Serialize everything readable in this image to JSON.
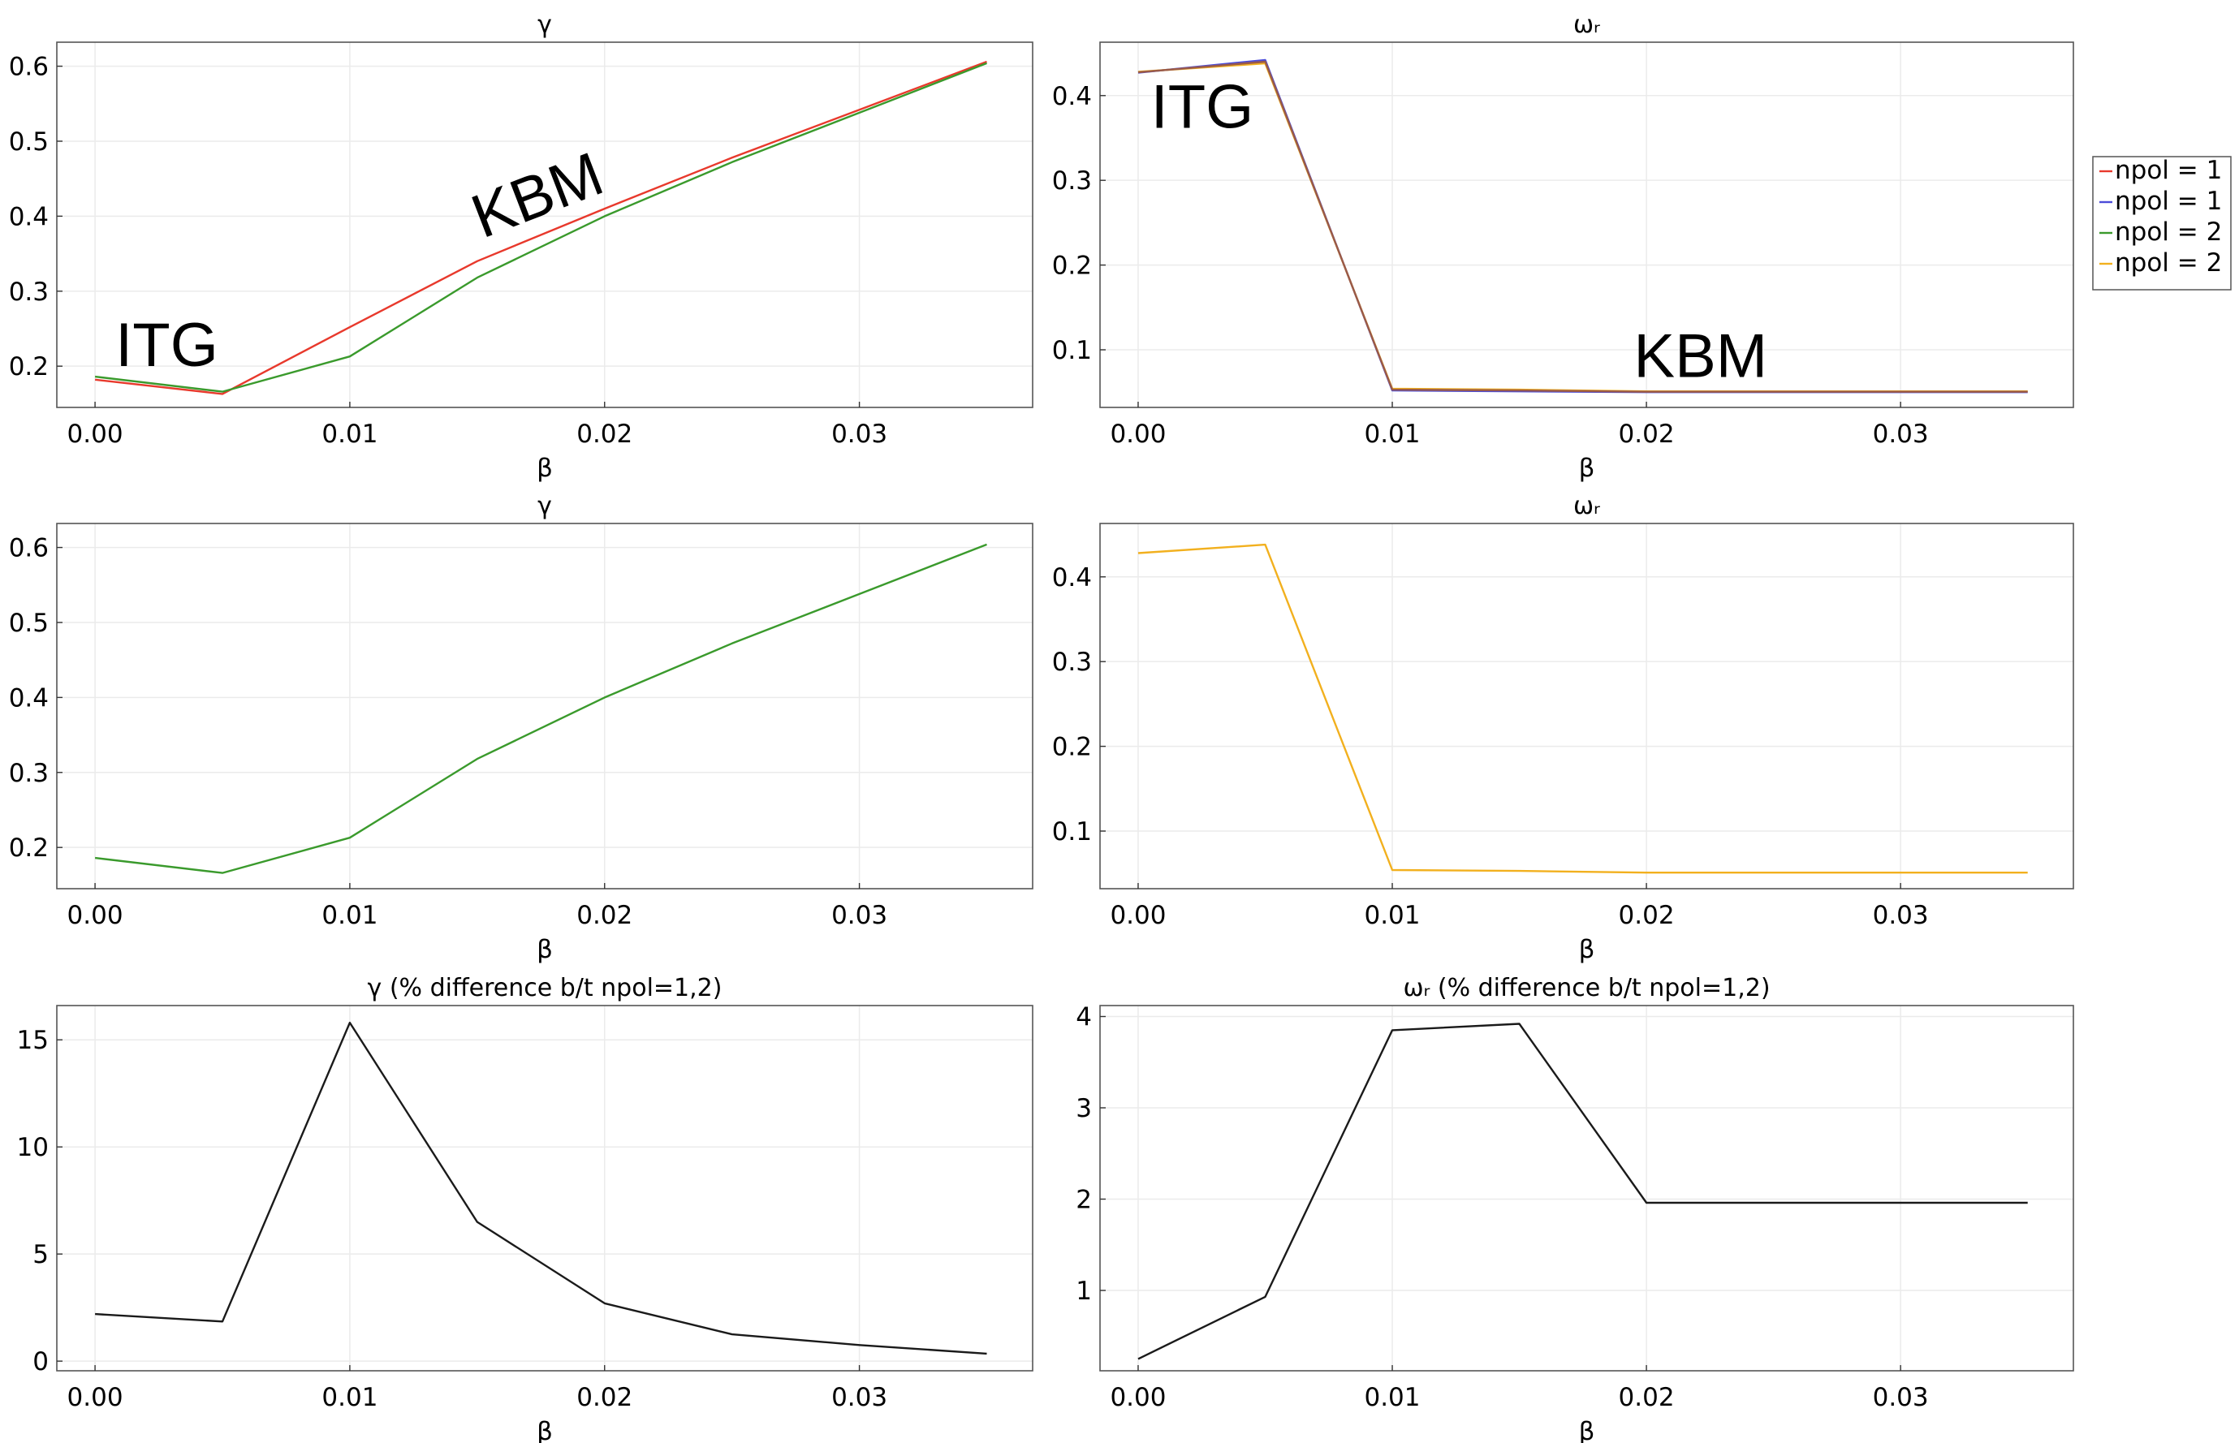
{
  "chart_data": [
    {
      "type": "line",
      "title": "γ",
      "xlabel": "β",
      "xlim": [
        -0.0015,
        0.0368
      ],
      "ylim": [
        0.145,
        0.632
      ],
      "xticks": [
        0.0,
        0.01,
        0.02,
        0.03
      ],
      "xtick_labels": [
        "0.00",
        "0.01",
        "0.02",
        "0.03"
      ],
      "yticks": [
        0.2,
        0.3,
        0.4,
        0.5,
        0.6
      ],
      "ytick_labels": [
        "0.2",
        "0.3",
        "0.4",
        "0.5",
        "0.6"
      ],
      "grid": true,
      "series": [
        {
          "name": "npol = 1",
          "color": "#e8392c",
          "x": [
            0.0,
            0.005,
            0.01,
            0.015,
            0.02,
            0.025,
            0.03,
            0.035
          ],
          "y": [
            0.182,
            0.163,
            0.252,
            0.34,
            0.41,
            0.478,
            0.542,
            0.606
          ]
        },
        {
          "name": "npol = 2",
          "color": "#3a9a2c",
          "x": [
            0.0,
            0.005,
            0.01,
            0.015,
            0.02,
            0.025,
            0.03,
            0.035
          ],
          "y": [
            0.186,
            0.166,
            0.213,
            0.318,
            0.4,
            0.472,
            0.538,
            0.604
          ]
        }
      ],
      "annotations": [
        {
          "text": "ITG",
          "x": 0.0008,
          "y": 0.2,
          "rotate": 0
        },
        {
          "text": "KBM",
          "x": 0.0152,
          "y": 0.37,
          "rotate": -21
        }
      ]
    },
    {
      "type": "line",
      "title": "ωᵣ",
      "xlabel": "β",
      "xlim": [
        -0.0015,
        0.0368
      ],
      "ylim": [
        0.032,
        0.463
      ],
      "xticks": [
        0.0,
        0.01,
        0.02,
        0.03
      ],
      "xtick_labels": [
        "0.00",
        "0.01",
        "0.02",
        "0.03"
      ],
      "yticks": [
        0.1,
        0.2,
        0.3,
        0.4
      ],
      "ytick_labels": [
        "0.1",
        "0.2",
        "0.3",
        "0.4"
      ],
      "grid": true,
      "series": [
        {
          "name": "npol = 1",
          "color": "#4b4bd8",
          "x": [
            0.0,
            0.005,
            0.01,
            0.015,
            0.02,
            0.025,
            0.03,
            0.035
          ],
          "y": [
            0.427,
            0.442,
            0.052,
            0.051,
            0.05,
            0.05,
            0.05,
            0.05
          ]
        },
        {
          "name": "npol = 2",
          "color": "#f2b01e",
          "x": [
            0.0,
            0.005,
            0.01,
            0.015,
            0.02,
            0.025,
            0.03,
            0.035
          ],
          "y": [
            0.428,
            0.438,
            0.054,
            0.053,
            0.051,
            0.051,
            0.051,
            0.051
          ]
        },
        {
          "name": "npol = 1",
          "color": "#9a5a48",
          "x": [
            0.0,
            0.005,
            0.01,
            0.015,
            0.02,
            0.025,
            0.03,
            0.035
          ],
          "y": [
            0.4275,
            0.44,
            0.053,
            0.052,
            0.0505,
            0.0505,
            0.0505,
            0.0505
          ]
        }
      ],
      "annotations": [
        {
          "text": "ITG",
          "x": 0.0005,
          "y": 0.362,
          "rotate": 0
        },
        {
          "text": "KBM",
          "x": 0.0195,
          "y": 0.068,
          "rotate": 0
        }
      ]
    },
    {
      "type": "line",
      "title": "γ",
      "xlabel": "β",
      "xlim": [
        -0.0015,
        0.0368
      ],
      "ylim": [
        0.145,
        0.632
      ],
      "xticks": [
        0.0,
        0.01,
        0.02,
        0.03
      ],
      "xtick_labels": [
        "0.00",
        "0.01",
        "0.02",
        "0.03"
      ],
      "yticks": [
        0.2,
        0.3,
        0.4,
        0.5,
        0.6
      ],
      "ytick_labels": [
        "0.2",
        "0.3",
        "0.4",
        "0.5",
        "0.6"
      ],
      "grid": true,
      "series": [
        {
          "name": "npol = 2",
          "color": "#3a9a2c",
          "x": [
            0.0,
            0.005,
            0.01,
            0.015,
            0.02,
            0.025,
            0.03,
            0.035
          ],
          "y": [
            0.186,
            0.166,
            0.213,
            0.318,
            0.4,
            0.472,
            0.538,
            0.604
          ]
        }
      ],
      "annotations": []
    },
    {
      "type": "line",
      "title": "ωᵣ",
      "xlabel": "β",
      "xlim": [
        -0.0015,
        0.0368
      ],
      "ylim": [
        0.032,
        0.463
      ],
      "xticks": [
        0.0,
        0.01,
        0.02,
        0.03
      ],
      "xtick_labels": [
        "0.00",
        "0.01",
        "0.02",
        "0.03"
      ],
      "yticks": [
        0.1,
        0.2,
        0.3,
        0.4
      ],
      "ytick_labels": [
        "0.1",
        "0.2",
        "0.3",
        "0.4"
      ],
      "grid": true,
      "series": [
        {
          "name": "npol = 2",
          "color": "#f2b01e",
          "x": [
            0.0,
            0.005,
            0.01,
            0.015,
            0.02,
            0.025,
            0.03,
            0.035
          ],
          "y": [
            0.428,
            0.438,
            0.054,
            0.053,
            0.051,
            0.051,
            0.051,
            0.051
          ]
        }
      ],
      "annotations": []
    },
    {
      "type": "line",
      "title": "γ (% difference b/t npol=1,2)",
      "xlabel": "β",
      "xlim": [
        -0.0015,
        0.0368
      ],
      "ylim": [
        -0.45,
        16.6
      ],
      "xticks": [
        0.0,
        0.01,
        0.02,
        0.03
      ],
      "xtick_labels": [
        "0.00",
        "0.01",
        "0.02",
        "0.03"
      ],
      "yticks": [
        0,
        5,
        10,
        15
      ],
      "ytick_labels": [
        "0",
        "5",
        "10",
        "15"
      ],
      "grid": true,
      "series": [
        {
          "name": "",
          "color": "#1a1a1a",
          "x": [
            0.0,
            0.005,
            0.01,
            0.015,
            0.02,
            0.025,
            0.03,
            0.035
          ],
          "y": [
            2.2,
            1.85,
            15.8,
            6.5,
            2.7,
            1.25,
            0.75,
            0.35
          ]
        }
      ],
      "annotations": []
    },
    {
      "type": "line",
      "title": "ωᵣ (% difference b/t npol=1,2)",
      "xlabel": "β",
      "xlim": [
        -0.0015,
        0.0368
      ],
      "ylim": [
        0.12,
        4.12
      ],
      "xticks": [
        0.0,
        0.01,
        0.02,
        0.03
      ],
      "xtick_labels": [
        "0.00",
        "0.01",
        "0.02",
        "0.03"
      ],
      "yticks": [
        1,
        2,
        3,
        4
      ],
      "ytick_labels": [
        "1",
        "2",
        "3",
        "4"
      ],
      "grid": true,
      "series": [
        {
          "name": "",
          "color": "#1a1a1a",
          "x": [
            0.0,
            0.005,
            0.01,
            0.015,
            0.02,
            0.025,
            0.03,
            0.035
          ],
          "y": [
            0.25,
            0.93,
            3.85,
            3.92,
            1.96,
            1.96,
            1.96,
            1.96
          ]
        }
      ],
      "annotations": []
    }
  ],
  "legend": {
    "placement": "right",
    "entries": [
      {
        "label": "npol = 1",
        "color": "#e8392c"
      },
      {
        "label": "npol = 1",
        "color": "#4b4bd8"
      },
      {
        "label": "npol = 2",
        "color": "#3a9a2c"
      },
      {
        "label": "npol = 2",
        "color": "#f2b01e"
      }
    ]
  }
}
